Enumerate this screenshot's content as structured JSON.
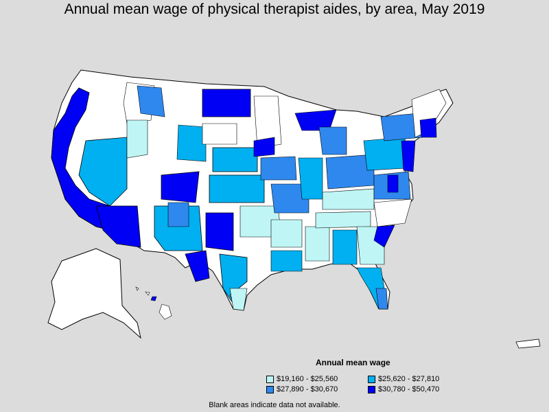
{
  "title": "Annual mean wage of physical therapist aides, by area, May 2019",
  "legend": {
    "title": "Annual mean wage",
    "items": [
      {
        "label": "$19,160 - $25,560",
        "color": "#bff5f5"
      },
      {
        "label": "$25,620 - $27,810",
        "color": "#00b0f0"
      },
      {
        "label": "$27,890 - $30,670",
        "color": "#2f88ee"
      },
      {
        "label": "$30,780 - $50,470",
        "color": "#0000f5"
      }
    ]
  },
  "footnote": "Blank areas indicate data not available.",
  "colors": {
    "background": "#dcdcdc",
    "no_data": "#ffffff",
    "outline": "#000000"
  }
}
